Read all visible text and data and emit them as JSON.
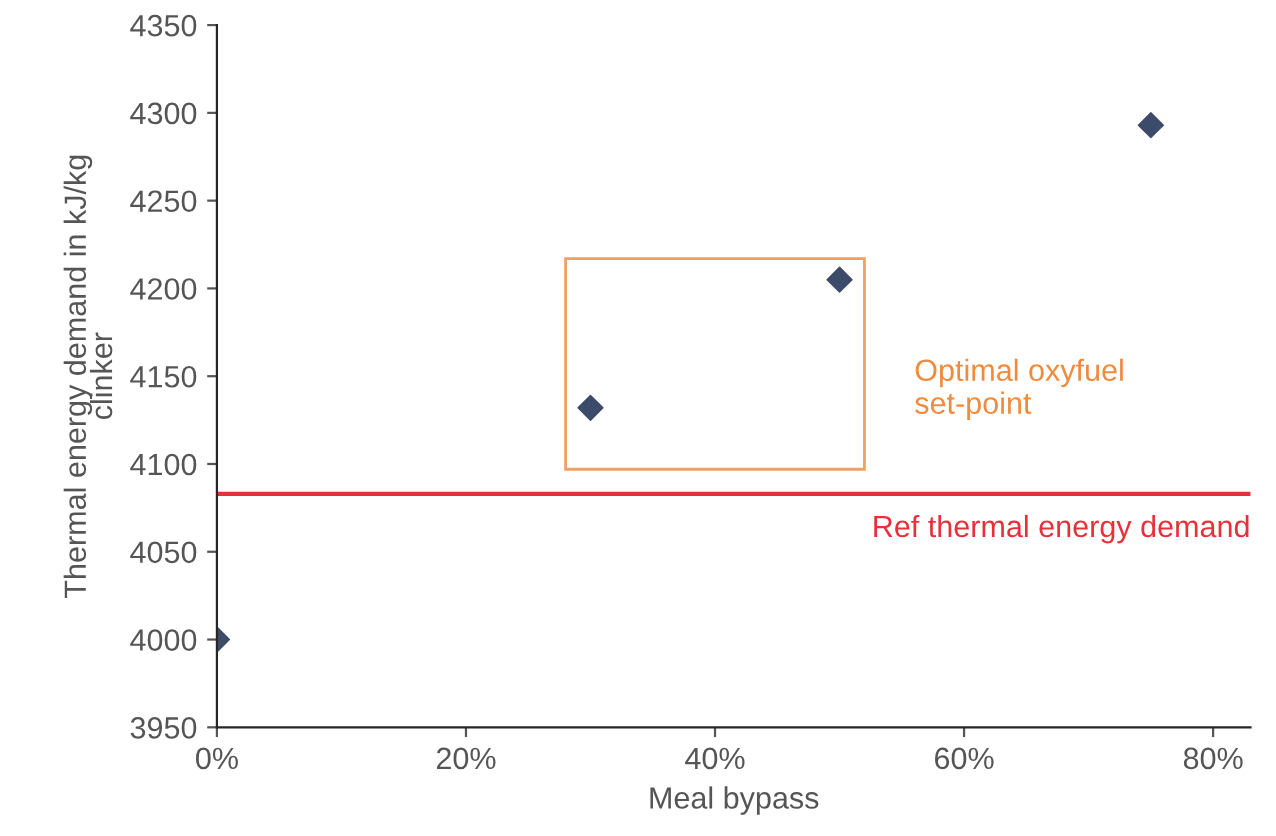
{
  "chart_data": {
    "type": "scatter",
    "xlabel": "Meal bypass",
    "ylabel": "Thermal energy demand in kJ/kg clinker",
    "x": [
      0,
      0.3,
      0.5,
      0.75
    ],
    "series": [
      {
        "color": "#3d4b6b",
        "values": [
          4000,
          4132,
          4205,
          4293
        ]
      }
    ],
    "marker": "diamond",
    "grid": false,
    "xlim": [
      0,
      0.83
    ],
    "xticks": [
      {
        "value": 0,
        "label": "0%"
      },
      {
        "value": 0.2,
        "label": "20%"
      },
      {
        "value": 0.4,
        "label": "40%"
      },
      {
        "value": 0.6,
        "label": "60%"
      },
      {
        "value": 0.8,
        "label": "80%"
      }
    ],
    "ylim": [
      3950,
      4350
    ],
    "yticks": [
      3950,
      4000,
      4050,
      4100,
      4150,
      4200,
      4250,
      4300,
      4350
    ],
    "ref_lines": [
      {
        "axis": "y",
        "value": 4083,
        "label": "Ref thermal energy demand",
        "color": "#e8303a"
      }
    ],
    "annotations": [
      "Optimal oxyfuel set-point"
    ]
  }
}
